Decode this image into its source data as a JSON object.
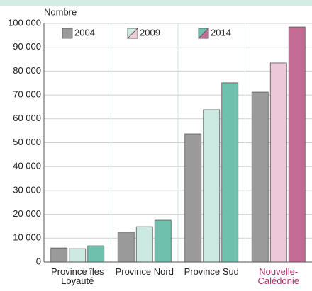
{
  "chart_data": {
    "type": "bar",
    "y_label": "Nombre",
    "categories": [
      "Province îles Loyauté",
      "Province Nord",
      "Province Sud",
      "Nouvelle-Calédonie"
    ],
    "category_colors": [
      "#222222",
      "#222222",
      "#222222",
      "#b0306e"
    ],
    "series": [
      {
        "name": "2004",
        "color": "#9a9a9a",
        "colors": [
          "#9a9a9a",
          "#9a9a9a",
          "#9a9a9a",
          "#9a9a9a"
        ],
        "values": [
          5900,
          12500,
          53700,
          71200
        ]
      },
      {
        "name": "2009",
        "color": "#cdeae2",
        "colors": [
          "#cdeae2",
          "#cdeae2",
          "#cdeae2",
          "#ecc8d8"
        ],
        "values": [
          5600,
          14800,
          63800,
          83400
        ]
      },
      {
        "name": "2014",
        "color": "#6fc1ae",
        "colors": [
          "#6fc1ae",
          "#6fc1ae",
          "#6fc1ae",
          "#c46c96"
        ],
        "values": [
          6800,
          17500,
          75100,
          98500
        ]
      }
    ],
    "ylim": [
      0,
      100000
    ],
    "yticks": [
      0,
      {
        "value": 10000,
        "label": "10 000"
      },
      {
        "value": 20000,
        "label": "20 000"
      },
      {
        "value": 30000,
        "label": "30 000"
      },
      {
        "value": 40000,
        "label": "40 000"
      },
      {
        "value": 50000,
        "label": "50 000"
      },
      {
        "value": 60000,
        "label": "60 000"
      },
      {
        "value": 70000,
        "label": "70 000"
      },
      {
        "value": 80000,
        "label": "80 000"
      },
      {
        "value": 90000,
        "label": "90 000"
      },
      {
        "value": 100000,
        "label": "100 000"
      }
    ],
    "grid": true
  }
}
